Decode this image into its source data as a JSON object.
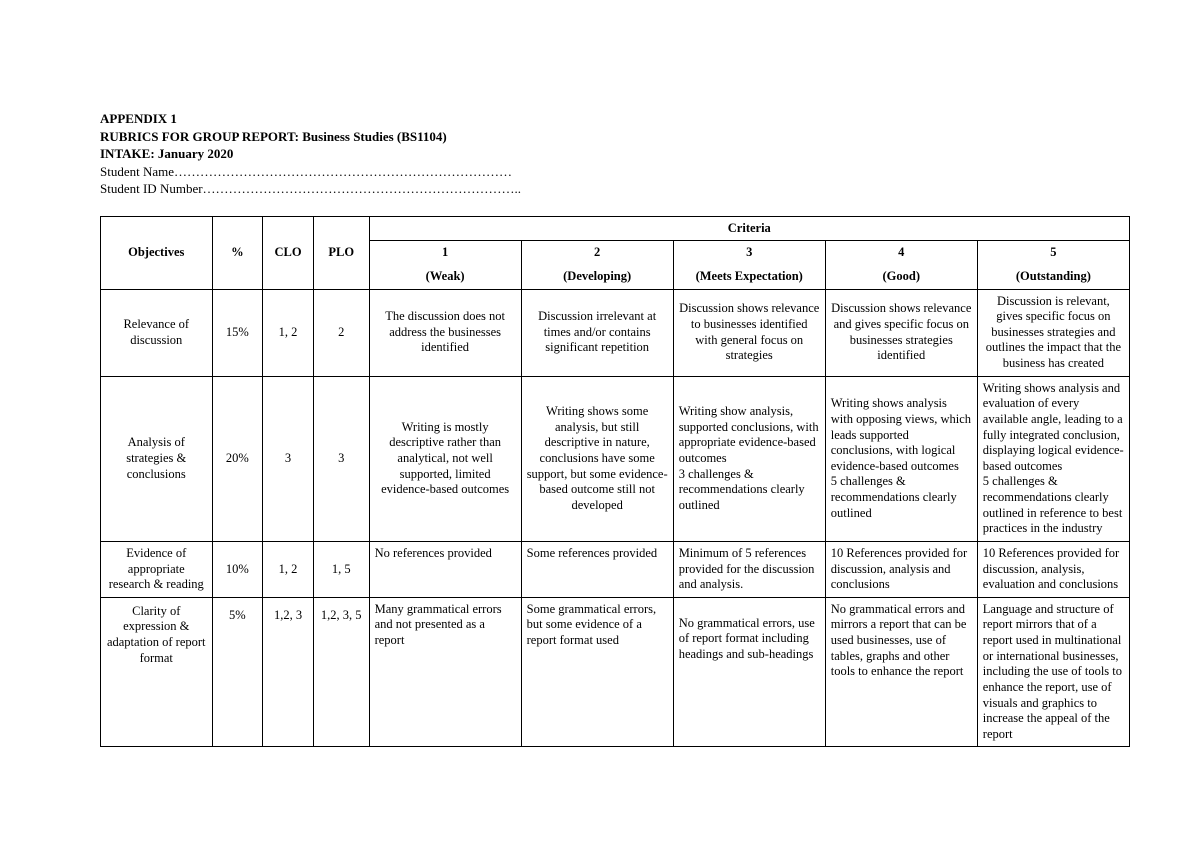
{
  "header": {
    "appendix": "APPENDIX 1",
    "title": "RUBRICS FOR GROUP REPORT: Business Studies (BS1104)",
    "intake": "INTAKE: January 2020",
    "student_name_label": "Student Name……………………………………………………………………",
    "student_id_label": "Student ID Number……………………………………………………………….."
  },
  "table": {
    "head": {
      "objectives": "Objectives",
      "percent": "%",
      "clo": "CLO",
      "plo": "PLO",
      "criteria": "Criteria",
      "levels_num": [
        "1",
        "2",
        "3",
        "4",
        "5"
      ],
      "levels_lbl": [
        "(Weak)",
        "(Developing)",
        "(Meets Expectation)",
        "(Good)",
        "(Outstanding)"
      ]
    },
    "rows": [
      {
        "objective": "Relevance of discussion",
        "percent": "15%",
        "clo": "1, 2",
        "plo": "2",
        "c1": "The discussion does not address the businesses identified",
        "c2": "Discussion irrelevant at times and/or contains significant repetition",
        "c3": "Discussion shows relevance to businesses identified with general focus on strategies",
        "c4": "Discussion shows relevance and gives specific focus on businesses strategies identified",
        "c5": "Discussion is relevant, gives specific focus on businesses strategies and outlines the impact that the business has created"
      },
      {
        "objective": "Analysis of strategies & conclusions",
        "percent": "20%",
        "clo": "3",
        "plo": "3",
        "c1": "Writing is mostly descriptive rather than analytical, not well supported, limited evidence-based outcomes",
        "c2": "Writing shows some analysis, but still descriptive in nature, conclusions have some support, but some evidence-based outcome still not developed",
        "c3": "Writing show analysis, supported conclusions, with appropriate evidence-based outcomes\n3 challenges & recommendations clearly outlined",
        "c4": "Writing shows analysis with opposing views, which leads supported conclusions, with logical evidence-based outcomes\n5 challenges & recommendations clearly outlined",
        "c5": "Writing shows analysis and evaluation of every available angle, leading to a fully integrated conclusion, displaying logical evidence-based outcomes\n5 challenges & recommendations clearly outlined in reference to best practices in the industry"
      },
      {
        "objective": "Evidence of appropriate research & reading",
        "percent": "10%",
        "clo": "1, 2",
        "plo": "1, 5",
        "c1": "No references provided",
        "c2": "Some references provided",
        "c3": "Minimum of 5 references provided for the discussion and analysis.",
        "c4": "10 References provided for discussion, analysis and conclusions",
        "c5": "10 References provided for discussion, analysis, evaluation and conclusions"
      },
      {
        "objective": "Clarity of expression & adaptation of report format",
        "percent": "5%",
        "clo": "1,2, 3",
        "plo": "1,2, 3, 5",
        "c1": "Many grammatical errors and not presented as a report",
        "c2": "Some grammatical errors, but some evidence of a report format used",
        "c3": "No grammatical errors, use of report format including headings and sub-headings",
        "c4": "No grammatical errors and mirrors a report that can be used businesses, use of tables, graphs and other tools to enhance the report",
        "c5": "Language and structure of report mirrors that of a report used in multinational or international businesses, including the use of tools to enhance the report, use of visuals and graphics to increase the appeal of the report"
      }
    ]
  }
}
